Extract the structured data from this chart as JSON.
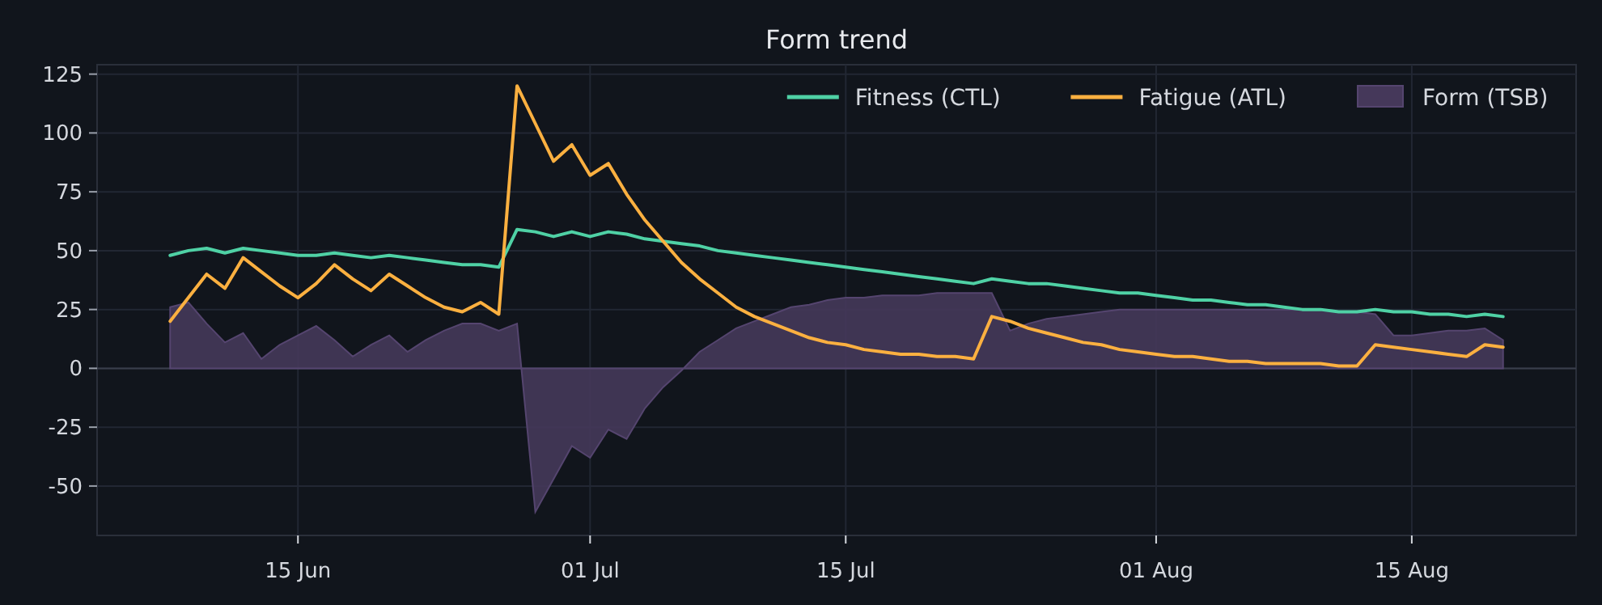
{
  "chart_data": {
    "type": "line",
    "title": "Form trend",
    "x": [
      "--06-08",
      "--06-09",
      "--06-10",
      "--06-11",
      "--06-12",
      "--06-13",
      "--06-14",
      "--06-15",
      "--06-16",
      "--06-17",
      "--06-18",
      "--06-19",
      "--06-20",
      "--06-21",
      "--06-22",
      "--06-23",
      "--06-24",
      "--06-25",
      "--06-26",
      "--06-27",
      "--06-28",
      "--06-29",
      "--06-30",
      "--07-01",
      "--07-02",
      "--07-03",
      "--07-04",
      "--07-05",
      "--07-06",
      "--07-07",
      "--07-08",
      "--07-09",
      "--07-10",
      "--07-11",
      "--07-12",
      "--07-13",
      "--07-14",
      "--07-15",
      "--07-16",
      "--07-17",
      "--07-18",
      "--07-19",
      "--07-20",
      "--07-21",
      "--07-22",
      "--07-23",
      "--07-24",
      "--07-25",
      "--07-26",
      "--07-27",
      "--07-28",
      "--07-29",
      "--07-30",
      "--07-31",
      "--08-01",
      "--08-02",
      "--08-03",
      "--08-04",
      "--08-05",
      "--08-06",
      "--08-07",
      "--08-08",
      "--08-09",
      "--08-10",
      "--08-11",
      "--08-12",
      "--08-13",
      "--08-14",
      "--08-15",
      "--08-16",
      "--08-17",
      "--08-18",
      "--08-19",
      "--08-20"
    ],
    "series": [
      {
        "name": "Fitness (CTL)",
        "color": "#4fd1a5",
        "values": [
          48,
          50,
          51,
          49,
          51,
          50,
          49,
          48,
          48,
          49,
          48,
          47,
          48,
          47,
          46,
          45,
          44,
          44,
          43,
          59,
          58,
          56,
          58,
          56,
          58,
          57,
          55,
          54,
          53,
          52,
          50,
          49,
          48,
          47,
          46,
          45,
          44,
          43,
          42,
          41,
          40,
          39,
          38,
          37,
          36,
          38,
          37,
          36,
          36,
          35,
          34,
          33,
          32,
          32,
          31,
          30,
          29,
          29,
          28,
          27,
          27,
          26,
          25,
          25,
          24,
          24,
          25,
          24,
          24,
          23,
          23,
          22,
          23,
          22
        ]
      },
      {
        "name": "Fatigue (ATL)",
        "color": "#fbb040",
        "values": [
          20,
          30,
          40,
          34,
          47,
          41,
          35,
          30,
          36,
          44,
          38,
          33,
          40,
          35,
          30,
          26,
          24,
          28,
          23,
          120,
          104,
          88,
          95,
          82,
          87,
          74,
          63,
          54,
          45,
          38,
          32,
          26,
          22,
          19,
          16,
          13,
          11,
          10,
          8,
          7,
          6,
          6,
          5,
          5,
          4,
          22,
          20,
          17,
          15,
          13,
          11,
          10,
          8,
          7,
          6,
          5,
          5,
          4,
          3,
          3,
          2,
          2,
          2,
          2,
          1,
          1,
          10,
          9,
          8,
          7,
          6,
          5,
          10,
          9
        ]
      },
      {
        "name": "Form (TSB)",
        "type": "area",
        "color": "#45385a",
        "values": [
          26,
          28,
          19,
          11,
          15,
          4,
          10,
          14,
          18,
          12,
          5,
          10,
          14,
          7,
          12,
          16,
          19,
          19,
          16,
          19,
          -61,
          -47,
          -33,
          -38,
          -26,
          -30,
          -17,
          -8,
          -1,
          7,
          12,
          17,
          20,
          23,
          26,
          27,
          29,
          30,
          30,
          31,
          31,
          31,
          32,
          32,
          32,
          32,
          16,
          19,
          21,
          22,
          23,
          24,
          25,
          25,
          25,
          25,
          25,
          25,
          25,
          25,
          25,
          25,
          25,
          25,
          24,
          24,
          23,
          14,
          14,
          15,
          16,
          16,
          17,
          12
        ]
      }
    ],
    "xlim": [
      "--06-04",
      "--08-24"
    ],
    "xticks": [
      {
        "value": "--06-15",
        "label": "15 Jun"
      },
      {
        "value": "--07-01",
        "label": "01 Jul"
      },
      {
        "value": "--07-15",
        "label": "15 Jul"
      },
      {
        "value": "--08-01",
        "label": "01 Aug"
      },
      {
        "value": "--08-15",
        "label": "15 Aug"
      }
    ],
    "ylim": [
      -71,
      129
    ],
    "yticks": [
      -50,
      -25,
      0,
      25,
      50,
      75,
      100,
      125
    ],
    "grid": true,
    "legend": "top right"
  }
}
